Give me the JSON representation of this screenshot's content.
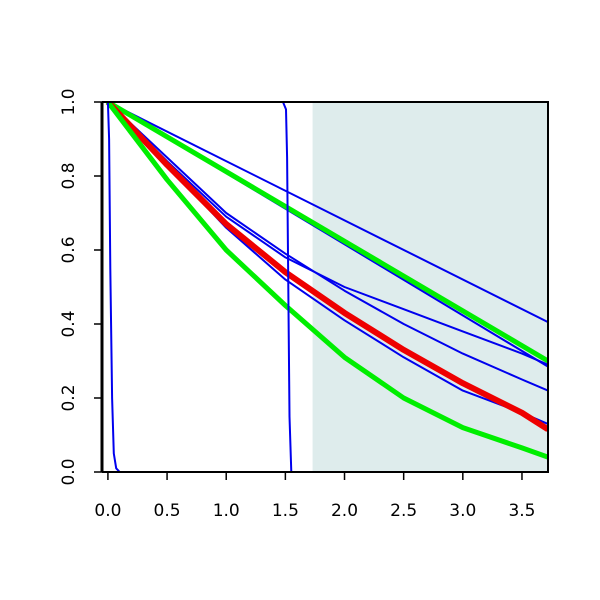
{
  "chart_data": {
    "type": "line",
    "title": "",
    "xlabel": "",
    "ylabel": "",
    "xlim": [
      -0.05,
      3.72
    ],
    "ylim": [
      0,
      1.0
    ],
    "x_ticks": [
      {
        "value": 0.0,
        "label": "0.0"
      },
      {
        "value": 0.5,
        "label": "0.5"
      },
      {
        "value": 1.0,
        "label": "1.0"
      },
      {
        "value": 1.5,
        "label": "1.5"
      },
      {
        "value": 2.0,
        "label": "2.0"
      },
      {
        "value": 2.5,
        "label": "2.5"
      },
      {
        "value": 3.0,
        "label": "3.0"
      },
      {
        "value": 3.5,
        "label": "3.5"
      }
    ],
    "y_ticks": [
      {
        "value": 0.0,
        "label": "0.0"
      },
      {
        "value": 0.2,
        "label": "0.2"
      },
      {
        "value": 0.4,
        "label": "0.4"
      },
      {
        "value": 0.6,
        "label": "0.6"
      },
      {
        "value": 0.8,
        "label": "0.8"
      },
      {
        "value": 1.0,
        "label": "1.0"
      }
    ],
    "grid": false,
    "legend": "none",
    "shaded_region": {
      "x_from": 1.73,
      "x_to": 3.72,
      "color": "#deecec"
    },
    "series": [
      {
        "color": "#0000ee",
        "width": 2,
        "x": [
          0,
          3.72
        ],
        "y": [
          1.0,
          0.405
        ]
      },
      {
        "color": "#0000ee",
        "width": 2,
        "x": [
          0,
          3.72
        ],
        "y": [
          1.0,
          0.285
        ]
      },
      {
        "color": "#0000ee",
        "width": 2,
        "x": [
          0,
          0.5,
          1.0,
          1.5,
          2.0,
          2.5,
          3.0,
          3.5,
          3.72
        ],
        "y": [
          1.0,
          0.85,
          0.7,
          0.59,
          0.49,
          0.4,
          0.32,
          0.25,
          0.22
        ]
      },
      {
        "color": "#0000ee",
        "width": 2,
        "x": [
          0,
          0.5,
          1.0,
          1.5,
          2.0,
          2.5,
          3.0,
          3.5,
          3.72
        ],
        "y": [
          1.0,
          0.84,
          0.69,
          0.58,
          0.5,
          0.44,
          0.38,
          0.32,
          0.29
        ]
      },
      {
        "color": "#0000ee",
        "width": 2,
        "x": [
          0,
          0.5,
          1.0,
          1.5,
          2.0,
          2.5,
          3.0,
          3.5,
          3.72
        ],
        "y": [
          1.0,
          0.83,
          0.66,
          0.52,
          0.41,
          0.31,
          0.22,
          0.16,
          0.13
        ]
      },
      {
        "color": "#00ee00",
        "width": 5,
        "x": [
          0,
          3.72
        ],
        "y": [
          1.0,
          0.3
        ]
      },
      {
        "color": "#ee0000",
        "width": 6,
        "x": [
          0,
          0.5,
          1.0,
          1.5,
          2.0,
          2.5,
          3.0,
          3.5,
          3.72
        ],
        "y": [
          1.0,
          0.83,
          0.67,
          0.54,
          0.43,
          0.33,
          0.24,
          0.16,
          0.115
        ]
      },
      {
        "color": "#00ee00",
        "width": 5,
        "x": [
          0,
          0.5,
          1.0,
          1.5,
          2.0,
          2.5,
          3.0,
          3.5,
          3.72
        ],
        "y": [
          1.0,
          0.79,
          0.6,
          0.45,
          0.31,
          0.2,
          0.12,
          0.065,
          0.04
        ]
      },
      {
        "color": "#0000ee",
        "width": 2,
        "x": [
          0,
          1.48,
          1.505,
          1.515,
          1.525,
          1.535,
          1.55,
          3.72
        ],
        "y": [
          1.0,
          1.0,
          0.98,
          0.85,
          0.5,
          0.15,
          0.0,
          0.0
        ]
      },
      {
        "color": "#0000ee",
        "width": 2,
        "x": [
          0,
          0.01,
          0.02,
          0.035,
          0.05,
          0.07,
          0.1,
          3.72
        ],
        "y": [
          1.0,
          0.9,
          0.55,
          0.2,
          0.05,
          0.01,
          0.0,
          0.0
        ]
      }
    ]
  }
}
